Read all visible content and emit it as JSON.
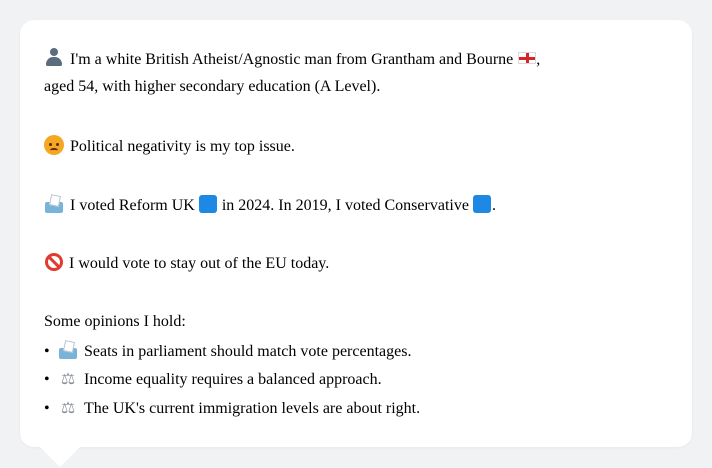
{
  "profile": {
    "intro_line1": "I'm a white British Atheist/Agnostic man from Grantham and Bourne",
    "intro_line1_end": ",",
    "intro_line2": "aged 54, with higher secondary education (A Level).",
    "top_issue": "Political negativity is my top issue.",
    "vote_part1": "I voted Reform UK",
    "vote_part2": "in 2024. In 2019, I voted Conservative",
    "vote_part3": ".",
    "eu_stance": "I would vote to stay out of the EU today.",
    "opinions_heading": "Some opinions I hold:",
    "opinions": [
      "Seats in parliament should match vote percentages.",
      "Income equality requires a balanced approach.",
      "The UK's current immigration levels are about right."
    ],
    "bullet": "•",
    "icons": {
      "person": "person-icon",
      "flag": "england-flag-icon",
      "angry": "angry-face-icon",
      "ballot": "ballot-box-icon",
      "no_entry": "prohibited-icon",
      "scales": "balance-scale-icon",
      "party_square": "blue-square-icon"
    },
    "colors": {
      "reform_uk": "#1e88e5",
      "conservative": "#1e88e5",
      "text": "#2b2b2b",
      "background": "#f1f2f4"
    },
    "scales_glyph": "⚖"
  }
}
